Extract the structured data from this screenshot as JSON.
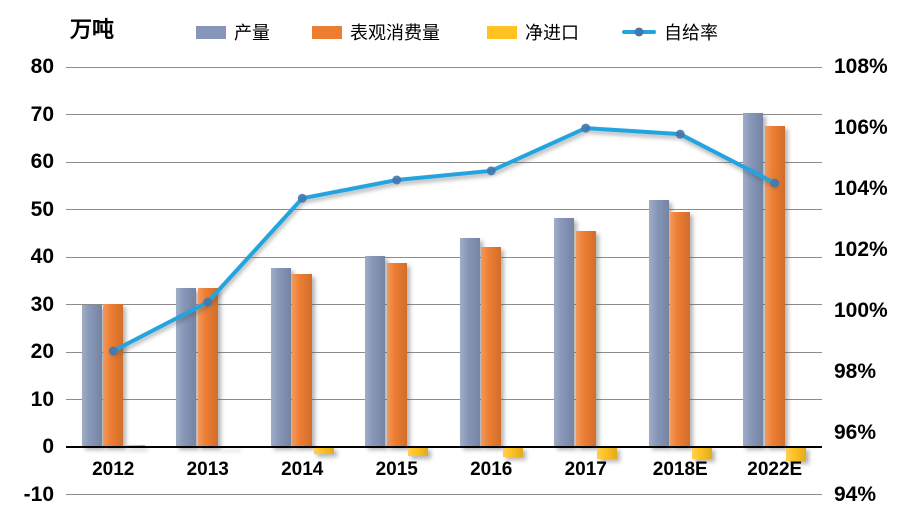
{
  "chart_data": {
    "type": "bar",
    "title": "",
    "unit_label": "万吨",
    "legend_position": "top",
    "grid": true,
    "gridline_color": "#8C8C8C",
    "axis_line_color": "#000000",
    "categories": [
      "2012",
      "2013",
      "2014",
      "2015",
      "2016",
      "2017",
      "2018E",
      "2022E"
    ],
    "series": [
      {
        "key": "production",
        "name": "产量",
        "type": "bar",
        "color": "#8696B8",
        "values": [
          29.8,
          33.5,
          37.7,
          40.3,
          44.0,
          48.2,
          52.0,
          70.4
        ]
      },
      {
        "key": "consumption",
        "name": "表观消费量",
        "type": "bar",
        "color": "#ED7D31",
        "values": [
          30.2,
          33.4,
          36.5,
          38.7,
          42.2,
          45.5,
          49.4,
          67.5
        ]
      },
      {
        "key": "net-import",
        "name": "净进口",
        "type": "bar",
        "color": "#FFC222",
        "values": [
          0.4,
          -0.2,
          -1.4,
          -1.8,
          -2.1,
          -2.6,
          -2.6,
          -2.9
        ]
      },
      {
        "key": "self-sufficiency",
        "name": "自给率",
        "type": "line",
        "axis": "right",
        "color": "#22A5DF",
        "marker_color": "#4477AD",
        "values": [
          98.7,
          100.3,
          103.7,
          104.3,
          104.6,
          106.0,
          105.8,
          104.2
        ]
      }
    ],
    "left_axis": {
      "min": -10,
      "max": 80,
      "ticks": [
        {
          "label": "80",
          "value": 80
        },
        {
          "label": "70",
          "value": 70
        },
        {
          "label": "60",
          "value": 60
        },
        {
          "label": "50",
          "value": 50
        },
        {
          "label": "40",
          "value": 40
        },
        {
          "label": "30",
          "value": 30
        },
        {
          "label": "20",
          "value": 20
        },
        {
          "label": "10",
          "value": 10
        },
        {
          "label": "0",
          "value": 0
        },
        {
          "label": "-10",
          "value": -10
        }
      ]
    },
    "right_axis": {
      "min": 94,
      "max": 108,
      "ticks": [
        {
          "label": "108%",
          "value": 108
        },
        {
          "label": "106%",
          "value": 106
        },
        {
          "label": "104%",
          "value": 104
        },
        {
          "label": "102%",
          "value": 102
        },
        {
          "label": "100%",
          "value": 100
        },
        {
          "label": "98%",
          "value": 98
        },
        {
          "label": "96%",
          "value": 96
        },
        {
          "label": "94%",
          "value": 94
        }
      ]
    }
  }
}
